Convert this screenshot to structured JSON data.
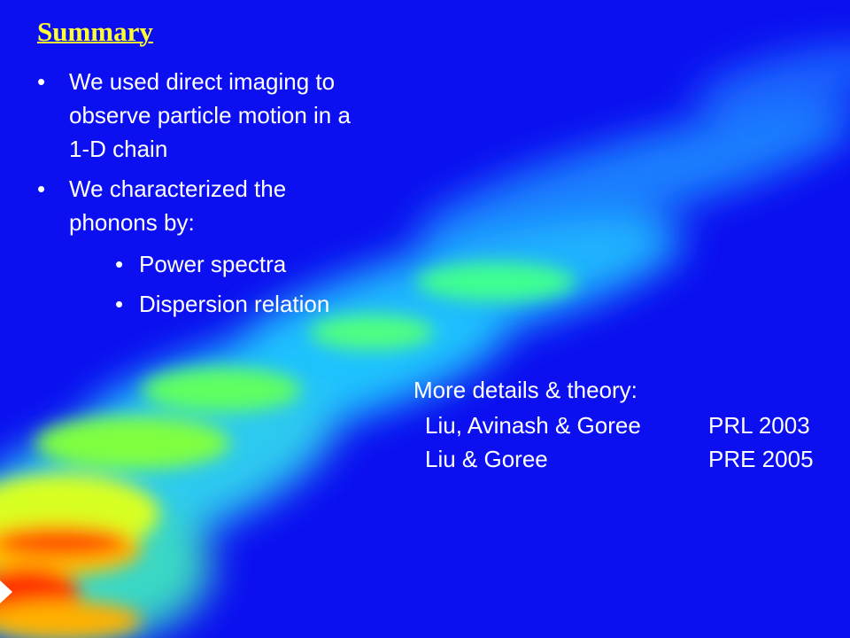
{
  "title": "Summary",
  "bullets": [
    {
      "text": "We used direct imaging to observe particle motion in a 1-D chain"
    },
    {
      "text": "We characterized the phonons by:",
      "sub": [
        "Power spectra",
        "Dispersion relation"
      ]
    }
  ],
  "references": {
    "heading": "More details & theory:",
    "items": [
      {
        "authors": "Liu, Avinash & Goree",
        "citation": "PRL 2003"
      },
      {
        "authors": "Liu & Goree",
        "citation": "PRE 2005"
      }
    ]
  }
}
